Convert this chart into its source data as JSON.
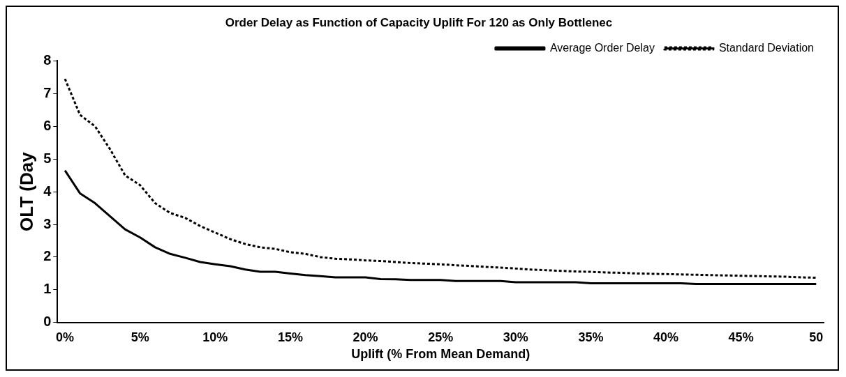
{
  "chart_data": {
    "type": "line",
    "title": "Order Delay as Function of Capacity Uplift For 120 as Only Bottlenec",
    "xlabel": "Uplift (% From Mean Demand)",
    "ylabel": "OLT (Day",
    "categories": [
      "0%",
      null,
      null,
      null,
      null,
      "5%",
      null,
      null,
      null,
      null,
      "10%",
      null,
      null,
      null,
      null,
      "15%",
      null,
      null,
      null,
      null,
      "20%",
      null,
      null,
      null,
      null,
      "25%",
      null,
      null,
      null,
      null,
      "30%",
      null,
      null,
      null,
      null,
      "35%",
      null,
      null,
      null,
      null,
      "40%",
      null,
      null,
      null,
      null,
      "45%",
      null,
      null,
      null,
      null,
      "50"
    ],
    "series": [
      {
        "name": "Average Order Delay",
        "color": "#000000",
        "line_style": "solid",
        "values": [
          4.65,
          3.95,
          3.65,
          3.25,
          2.85,
          2.6,
          2.3,
          2.1,
          1.98,
          1.85,
          1.78,
          1.72,
          1.62,
          1.55,
          1.55,
          1.5,
          1.45,
          1.42,
          1.38,
          1.38,
          1.38,
          1.33,
          1.32,
          1.3,
          1.3,
          1.3,
          1.27,
          1.27,
          1.27,
          1.27,
          1.23,
          1.23,
          1.23,
          1.23,
          1.23,
          1.2,
          1.2,
          1.2,
          1.2,
          1.2,
          1.2,
          1.2,
          1.18,
          1.18,
          1.18,
          1.18,
          1.18,
          1.18,
          1.18,
          1.18,
          1.18
        ]
      },
      {
        "name": "Standard Deviation",
        "color": "#000000",
        "line_style": "dotted",
        "values": [
          7.45,
          6.35,
          6.0,
          5.3,
          4.5,
          4.2,
          3.65,
          3.35,
          3.2,
          2.95,
          2.75,
          2.55,
          2.4,
          2.3,
          2.25,
          2.15,
          2.1,
          2.0,
          1.95,
          1.93,
          1.9,
          1.88,
          1.85,
          1.82,
          1.8,
          1.78,
          1.75,
          1.73,
          1.7,
          1.68,
          1.65,
          1.62,
          1.6,
          1.58,
          1.56,
          1.55,
          1.53,
          1.52,
          1.5,
          1.49,
          1.48,
          1.47,
          1.46,
          1.45,
          1.44,
          1.43,
          1.42,
          1.41,
          1.4,
          1.38,
          1.37
        ]
      }
    ],
    "ylim": [
      0,
      8
    ],
    "yticks": [
      0,
      1,
      2,
      3,
      4,
      5,
      6,
      7,
      8
    ],
    "grid": false,
    "legend": "top right"
  }
}
